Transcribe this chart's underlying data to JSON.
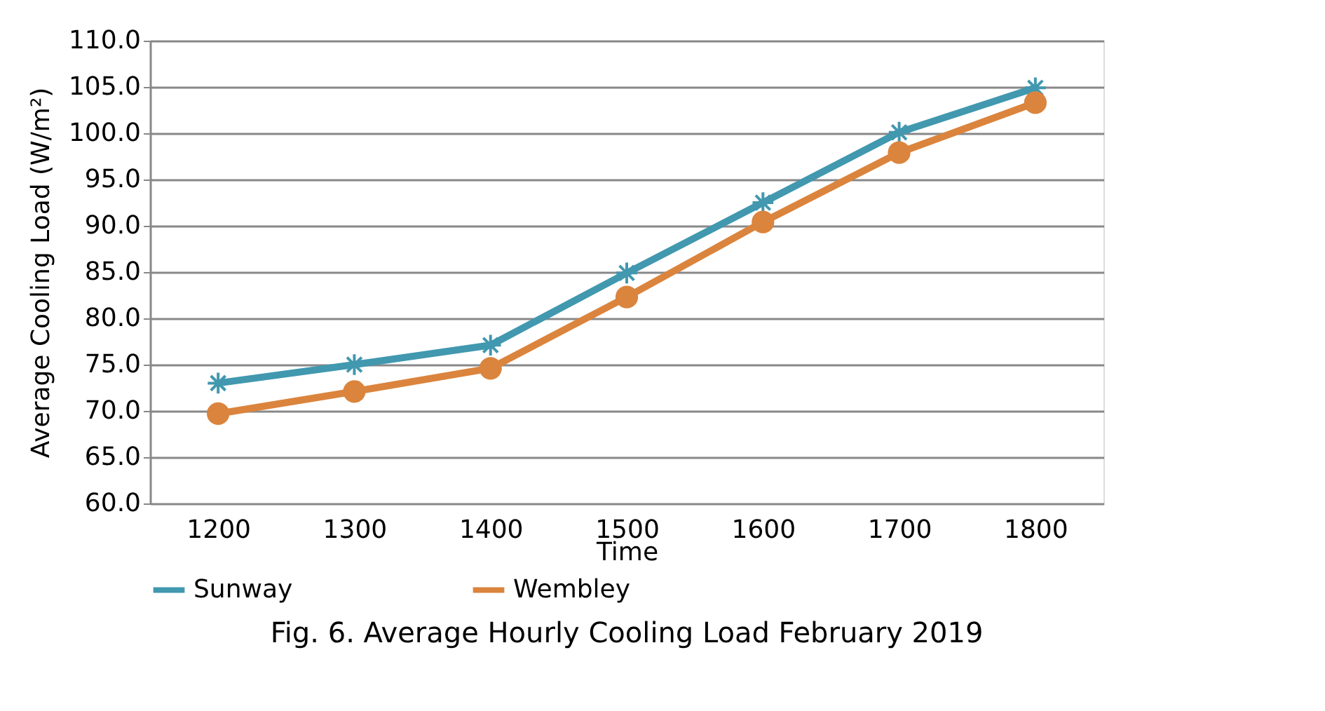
{
  "chart_data": {
    "type": "line",
    "xlabel": "Time",
    "ylabel": "Average Cooling Load (W/m²)",
    "categories": [
      "1200",
      "1300",
      "1400",
      "1500",
      "1600",
      "1700",
      "1800"
    ],
    "series": [
      {
        "name": "Sunway",
        "color": "#4198af",
        "marker": "cross",
        "values": [
          73.0,
          75.0,
          77.1,
          84.9,
          92.5,
          100.1,
          104.9
        ]
      },
      {
        "name": "Wembley",
        "color": "#db843d",
        "marker": "circle",
        "values": [
          69.7,
          72.1,
          74.6,
          82.3,
          90.4,
          97.9,
          103.3
        ]
      }
    ],
    "ylim": [
      60,
      110
    ],
    "yticks": [
      {
        "value": 60,
        "label": "60.0"
      },
      {
        "value": 65,
        "label": "65.0"
      },
      {
        "value": 70,
        "label": "70.0"
      },
      {
        "value": 75,
        "label": "75.0"
      },
      {
        "value": 80,
        "label": "80.0"
      },
      {
        "value": 85,
        "label": "85.0"
      },
      {
        "value": 90,
        "label": "90.0"
      },
      {
        "value": 95,
        "label": "95.0"
      },
      {
        "value": 100,
        "label": "100.0"
      },
      {
        "value": 105,
        "label": "105.0"
      },
      {
        "value": 110,
        "label": "110.0"
      }
    ],
    "grid": "y",
    "legend": "bottom",
    "line_style": "solid",
    "annotations": [
      "Fig. 6. Average Hourly Cooling Load February 2019"
    ]
  }
}
